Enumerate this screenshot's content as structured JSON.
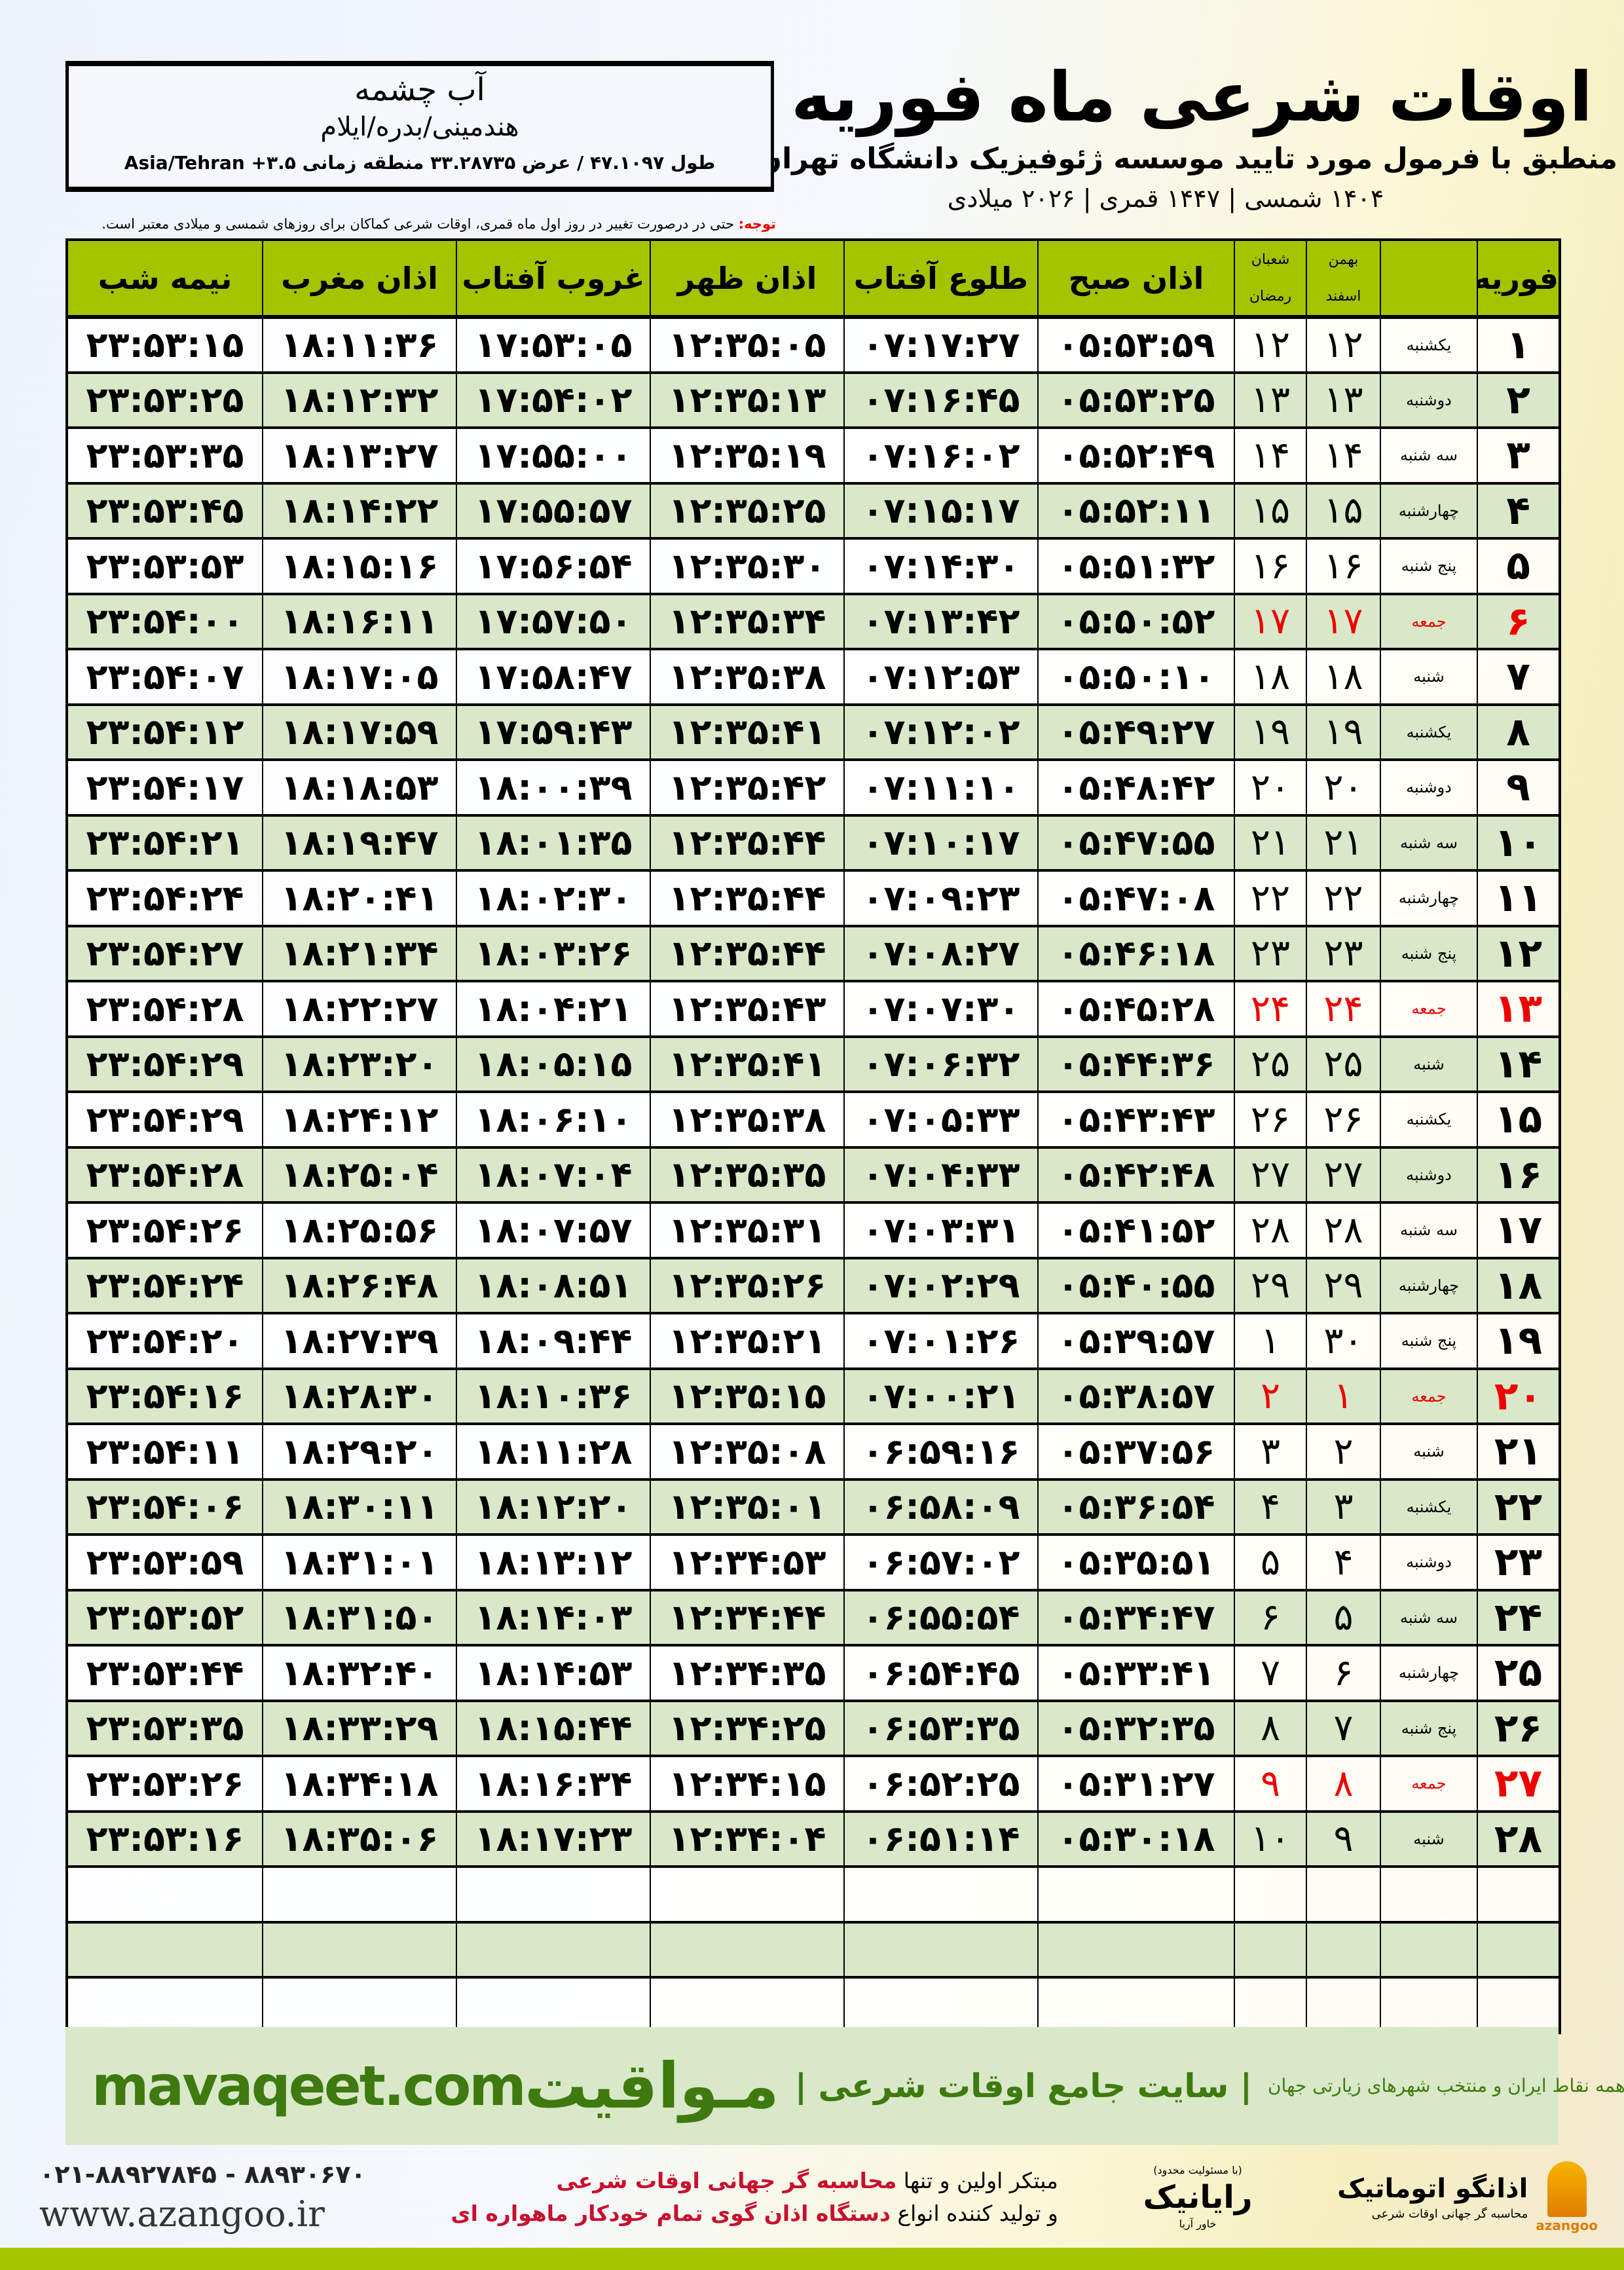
{
  "header": {
    "title": "اوقات شرعی ماه فوریه",
    "subtitle": "منطبق با فرمول مورد تایید موسسه ژئوفیزیک دانشگاه تهران",
    "dates": "۱۴۰۴ شمسی | ۱۴۴۷ قمری | ۲۰۲۶ میلادی"
  },
  "location": {
    "city": "آب چشمه",
    "region": "هندمینی/بدره/ایلام",
    "coords": "طول ۴۷.۱۰۹۷ / عرض ۳۳.۲۸۷۳۵ منطقه زمانی ۳.۵+ Asia/Tehran"
  },
  "note": {
    "label": "توجه:",
    "text": " حتی در درصورت تغییر در روز اول ماه قمری، اوقات شرعی کماکان برای روزهای شمسی و میلادی معتبر است."
  },
  "colors": {
    "header_green": "#a4c400",
    "row_green": "#d9e8c8",
    "holiday_red": "#e00000",
    "brand_green": "#3e7a0f"
  },
  "columns": {
    "month": "فوریه",
    "shamsi_1": "بهمن",
    "shamsi_2": "اسفند",
    "qamari_1": "شعبان",
    "qamari_2": "رمضان",
    "fajr": "اذان صبح",
    "sunrise": "طلوع آفتاب",
    "dhuhr": "اذان ظهر",
    "sunset": "غروب آفتاب",
    "maghrib": "اذان مغرب",
    "midnight": "نیمه شب"
  },
  "rows": [
    {
      "day": "۱",
      "weekday": "یکشنبه",
      "shamsi": "۱۲",
      "qamari": "۱۲",
      "fajr": "۰۵:۵۳:۵۹",
      "sunrise": "۰۷:۱۷:۲۷",
      "dhuhr": "۱۲:۳۵:۰۵",
      "sunset": "۱۷:۵۳:۰۵",
      "maghrib": "۱۸:۱۱:۳۶",
      "midnight": "۲۳:۵۳:۱۵",
      "holiday": false
    },
    {
      "day": "۲",
      "weekday": "دوشنبه",
      "shamsi": "۱۳",
      "qamari": "۱۳",
      "fajr": "۰۵:۵۳:۲۵",
      "sunrise": "۰۷:۱۶:۴۵",
      "dhuhr": "۱۲:۳۵:۱۳",
      "sunset": "۱۷:۵۴:۰۲",
      "maghrib": "۱۸:۱۲:۳۲",
      "midnight": "۲۳:۵۳:۲۵",
      "holiday": false
    },
    {
      "day": "۳",
      "weekday": "سه شنبه",
      "shamsi": "۱۴",
      "qamari": "۱۴",
      "fajr": "۰۵:۵۲:۴۹",
      "sunrise": "۰۷:۱۶:۰۲",
      "dhuhr": "۱۲:۳۵:۱۹",
      "sunset": "۱۷:۵۵:۰۰",
      "maghrib": "۱۸:۱۳:۲۷",
      "midnight": "۲۳:۵۳:۳۵",
      "holiday": false
    },
    {
      "day": "۴",
      "weekday": "چهارشنبه",
      "shamsi": "۱۵",
      "qamari": "۱۵",
      "fajr": "۰۵:۵۲:۱۱",
      "sunrise": "۰۷:۱۵:۱۷",
      "dhuhr": "۱۲:۳۵:۲۵",
      "sunset": "۱۷:۵۵:۵۷",
      "maghrib": "۱۸:۱۴:۲۲",
      "midnight": "۲۳:۵۳:۴۵",
      "holiday": false
    },
    {
      "day": "۵",
      "weekday": "پنج شنبه",
      "shamsi": "۱۶",
      "qamari": "۱۶",
      "fajr": "۰۵:۵۱:۳۲",
      "sunrise": "۰۷:۱۴:۳۰",
      "dhuhr": "۱۲:۳۵:۳۰",
      "sunset": "۱۷:۵۶:۵۴",
      "maghrib": "۱۸:۱۵:۱۶",
      "midnight": "۲۳:۵۳:۵۳",
      "holiday": false
    },
    {
      "day": "۶",
      "weekday": "جمعه",
      "shamsi": "۱۷",
      "qamari": "۱۷",
      "fajr": "۰۵:۵۰:۵۲",
      "sunrise": "۰۷:۱۳:۴۲",
      "dhuhr": "۱۲:۳۵:۳۴",
      "sunset": "۱۷:۵۷:۵۰",
      "maghrib": "۱۸:۱۶:۱۱",
      "midnight": "۲۳:۵۴:۰۰",
      "holiday": true
    },
    {
      "day": "۷",
      "weekday": "شنبه",
      "shamsi": "۱۸",
      "qamari": "۱۸",
      "fajr": "۰۵:۵۰:۱۰",
      "sunrise": "۰۷:۱۲:۵۳",
      "dhuhr": "۱۲:۳۵:۳۸",
      "sunset": "۱۷:۵۸:۴۷",
      "maghrib": "۱۸:۱۷:۰۵",
      "midnight": "۲۳:۵۴:۰۷",
      "holiday": false
    },
    {
      "day": "۸",
      "weekday": "یکشنبه",
      "shamsi": "۱۹",
      "qamari": "۱۹",
      "fajr": "۰۵:۴۹:۲۷",
      "sunrise": "۰۷:۱۲:۰۲",
      "dhuhr": "۱۲:۳۵:۴۱",
      "sunset": "۱۷:۵۹:۴۳",
      "maghrib": "۱۸:۱۷:۵۹",
      "midnight": "۲۳:۵۴:۱۲",
      "holiday": false
    },
    {
      "day": "۹",
      "weekday": "دوشنبه",
      "shamsi": "۲۰",
      "qamari": "۲۰",
      "fajr": "۰۵:۴۸:۴۲",
      "sunrise": "۰۷:۱۱:۱۰",
      "dhuhr": "۱۲:۳۵:۴۲",
      "sunset": "۱۸:۰۰:۳۹",
      "maghrib": "۱۸:۱۸:۵۳",
      "midnight": "۲۳:۵۴:۱۷",
      "holiday": false
    },
    {
      "day": "۱۰",
      "weekday": "سه شنبه",
      "shamsi": "۲۱",
      "qamari": "۲۱",
      "fajr": "۰۵:۴۷:۵۵",
      "sunrise": "۰۷:۱۰:۱۷",
      "dhuhr": "۱۲:۳۵:۴۴",
      "sunset": "۱۸:۰۱:۳۵",
      "maghrib": "۱۸:۱۹:۴۷",
      "midnight": "۲۳:۵۴:۲۱",
      "holiday": false
    },
    {
      "day": "۱۱",
      "weekday": "چهارشنبه",
      "shamsi": "۲۲",
      "qamari": "۲۲",
      "fajr": "۰۵:۴۷:۰۸",
      "sunrise": "۰۷:۰۹:۲۳",
      "dhuhr": "۱۲:۳۵:۴۴",
      "sunset": "۱۸:۰۲:۳۰",
      "maghrib": "۱۸:۲۰:۴۱",
      "midnight": "۲۳:۵۴:۲۴",
      "holiday": false
    },
    {
      "day": "۱۲",
      "weekday": "پنج شنبه",
      "shamsi": "۲۳",
      "qamari": "۲۳",
      "fajr": "۰۵:۴۶:۱۸",
      "sunrise": "۰۷:۰۸:۲۷",
      "dhuhr": "۱۲:۳۵:۴۴",
      "sunset": "۱۸:۰۳:۲۶",
      "maghrib": "۱۸:۲۱:۳۴",
      "midnight": "۲۳:۵۴:۲۷",
      "holiday": false
    },
    {
      "day": "۱۳",
      "weekday": "جمعه",
      "shamsi": "۲۴",
      "qamari": "۲۴",
      "fajr": "۰۵:۴۵:۲۸",
      "sunrise": "۰۷:۰۷:۳۰",
      "dhuhr": "۱۲:۳۵:۴۳",
      "sunset": "۱۸:۰۴:۲۱",
      "maghrib": "۱۸:۲۲:۲۷",
      "midnight": "۲۳:۵۴:۲۸",
      "holiday": true
    },
    {
      "day": "۱۴",
      "weekday": "شنبه",
      "shamsi": "۲۵",
      "qamari": "۲۵",
      "fajr": "۰۵:۴۴:۳۶",
      "sunrise": "۰۷:۰۶:۳۲",
      "dhuhr": "۱۲:۳۵:۴۱",
      "sunset": "۱۸:۰۵:۱۵",
      "maghrib": "۱۸:۲۳:۲۰",
      "midnight": "۲۳:۵۴:۲۹",
      "holiday": false
    },
    {
      "day": "۱۵",
      "weekday": "یکشنبه",
      "shamsi": "۲۶",
      "qamari": "۲۶",
      "fajr": "۰۵:۴۳:۴۳",
      "sunrise": "۰۷:۰۵:۳۳",
      "dhuhr": "۱۲:۳۵:۳۸",
      "sunset": "۱۸:۰۶:۱۰",
      "maghrib": "۱۸:۲۴:۱۲",
      "midnight": "۲۳:۵۴:۲۹",
      "holiday": false
    },
    {
      "day": "۱۶",
      "weekday": "دوشنبه",
      "shamsi": "۲۷",
      "qamari": "۲۷",
      "fajr": "۰۵:۴۲:۴۸",
      "sunrise": "۰۷:۰۴:۳۳",
      "dhuhr": "۱۲:۳۵:۳۵",
      "sunset": "۱۸:۰۷:۰۴",
      "maghrib": "۱۸:۲۵:۰۴",
      "midnight": "۲۳:۵۴:۲۸",
      "holiday": false
    },
    {
      "day": "۱۷",
      "weekday": "سه شنبه",
      "shamsi": "۲۸",
      "qamari": "۲۸",
      "fajr": "۰۵:۴۱:۵۲",
      "sunrise": "۰۷:۰۳:۳۱",
      "dhuhr": "۱۲:۳۵:۳۱",
      "sunset": "۱۸:۰۷:۵۷",
      "maghrib": "۱۸:۲۵:۵۶",
      "midnight": "۲۳:۵۴:۲۶",
      "holiday": false
    },
    {
      "day": "۱۸",
      "weekday": "چهارشنبه",
      "shamsi": "۲۹",
      "qamari": "۲۹",
      "fajr": "۰۵:۴۰:۵۵",
      "sunrise": "۰۷:۰۲:۲۹",
      "dhuhr": "۱۲:۳۵:۲۶",
      "sunset": "۱۸:۰۸:۵۱",
      "maghrib": "۱۸:۲۶:۴۸",
      "midnight": "۲۳:۵۴:۲۴",
      "holiday": false
    },
    {
      "day": "۱۹",
      "weekday": "پنج شنبه",
      "shamsi": "۳۰",
      "qamari": "۱",
      "fajr": "۰۵:۳۹:۵۷",
      "sunrise": "۰۷:۰۱:۲۶",
      "dhuhr": "۱۲:۳۵:۲۱",
      "sunset": "۱۸:۰۹:۴۴",
      "maghrib": "۱۸:۲۷:۳۹",
      "midnight": "۲۳:۵۴:۲۰",
      "holiday": false
    },
    {
      "day": "۲۰",
      "weekday": "جمعه",
      "shamsi": "۱",
      "qamari": "۲",
      "fajr": "۰۵:۳۸:۵۷",
      "sunrise": "۰۷:۰۰:۲۱",
      "dhuhr": "۱۲:۳۵:۱۵",
      "sunset": "۱۸:۱۰:۳۶",
      "maghrib": "۱۸:۲۸:۳۰",
      "midnight": "۲۳:۵۴:۱۶",
      "holiday": true
    },
    {
      "day": "۲۱",
      "weekday": "شنبه",
      "shamsi": "۲",
      "qamari": "۳",
      "fajr": "۰۵:۳۷:۵۶",
      "sunrise": "۰۶:۵۹:۱۶",
      "dhuhr": "۱۲:۳۵:۰۸",
      "sunset": "۱۸:۱۱:۲۸",
      "maghrib": "۱۸:۲۹:۲۰",
      "midnight": "۲۳:۵۴:۱۱",
      "holiday": false
    },
    {
      "day": "۲۲",
      "weekday": "یکشنبه",
      "shamsi": "۳",
      "qamari": "۴",
      "fajr": "۰۵:۳۶:۵۴",
      "sunrise": "۰۶:۵۸:۰۹",
      "dhuhr": "۱۲:۳۵:۰۱",
      "sunset": "۱۸:۱۲:۲۰",
      "maghrib": "۱۸:۳۰:۱۱",
      "midnight": "۲۳:۵۴:۰۶",
      "holiday": false
    },
    {
      "day": "۲۳",
      "weekday": "دوشنبه",
      "shamsi": "۴",
      "qamari": "۵",
      "fajr": "۰۵:۳۵:۵۱",
      "sunrise": "۰۶:۵۷:۰۲",
      "dhuhr": "۱۲:۳۴:۵۳",
      "sunset": "۱۸:۱۳:۱۲",
      "maghrib": "۱۸:۳۱:۰۱",
      "midnight": "۲۳:۵۳:۵۹",
      "holiday": false
    },
    {
      "day": "۲۴",
      "weekday": "سه شنبه",
      "shamsi": "۵",
      "qamari": "۶",
      "fajr": "۰۵:۳۴:۴۷",
      "sunrise": "۰۶:۵۵:۵۴",
      "dhuhr": "۱۲:۳۴:۴۴",
      "sunset": "۱۸:۱۴:۰۳",
      "maghrib": "۱۸:۳۱:۵۰",
      "midnight": "۲۳:۵۳:۵۲",
      "holiday": false
    },
    {
      "day": "۲۵",
      "weekday": "چهارشنبه",
      "shamsi": "۶",
      "qamari": "۷",
      "fajr": "۰۵:۳۳:۴۱",
      "sunrise": "۰۶:۵۴:۴۵",
      "dhuhr": "۱۲:۳۴:۳۵",
      "sunset": "۱۸:۱۴:۵۳",
      "maghrib": "۱۸:۳۲:۴۰",
      "midnight": "۲۳:۵۳:۴۴",
      "holiday": false
    },
    {
      "day": "۲۶",
      "weekday": "پنج شنبه",
      "shamsi": "۷",
      "qamari": "۸",
      "fajr": "۰۵:۳۲:۳۵",
      "sunrise": "۰۶:۵۳:۳۵",
      "dhuhr": "۱۲:۳۴:۲۵",
      "sunset": "۱۸:۱۵:۴۴",
      "maghrib": "۱۸:۳۳:۲۹",
      "midnight": "۲۳:۵۳:۳۵",
      "holiday": false
    },
    {
      "day": "۲۷",
      "weekday": "جمعه",
      "shamsi": "۸",
      "qamari": "۹",
      "fajr": "۰۵:۳۱:۲۷",
      "sunrise": "۰۶:۵۲:۲۵",
      "dhuhr": "۱۲:۳۴:۱۵",
      "sunset": "۱۸:۱۶:۳۴",
      "maghrib": "۱۸:۳۴:۱۸",
      "midnight": "۲۳:۵۳:۲۶",
      "holiday": true
    },
    {
      "day": "۲۸",
      "weekday": "شنبه",
      "shamsi": "۹",
      "qamari": "۱۰",
      "fajr": "۰۵:۳۰:۱۸",
      "sunrise": "۰۶:۵۱:۱۴",
      "dhuhr": "۱۲:۳۴:۰۴",
      "sunset": "۱۸:۱۷:۲۳",
      "maghrib": "۱۸:۳۵:۰۶",
      "midnight": "۲۳:۵۳:۱۶",
      "holiday": false
    }
  ],
  "footer": {
    "brand": "مـواقیت",
    "slogan": "| سایت جامع اوقات شرعی |",
    "slogan2": "همه نقاط ایران و منتخب شهرهای زیارتی جهان",
    "url": "mavaqeet.com",
    "phone": "۰۲۱-۸۸۹۲۷۸۴۵ - ۸۸۹۳۰۶۷۰",
    "website": "www.azangoo.ir",
    "ad_line1_a": "مبتکر اولین و تنها ",
    "ad_line1_b": "محاسبه گر جهانی اوقات شرعی",
    "ad_line2_a": "و تولید کننده انواع ",
    "ad_line2_b": "دستگاه اذان گوی تمام خودکار ماهواره ای",
    "logo_rayanik": "رایانیک",
    "logo_rayanik_sub": "خاور آریا",
    "logo_rayanik_note": "(با مسئولیت محدود)",
    "logo_azangoo": "اذانگو اتوماتیک",
    "logo_azangoo_latin": "azangoo",
    "logo_azangoo_sub": "محاسبه گر جهانی اوقات شرعی"
  }
}
